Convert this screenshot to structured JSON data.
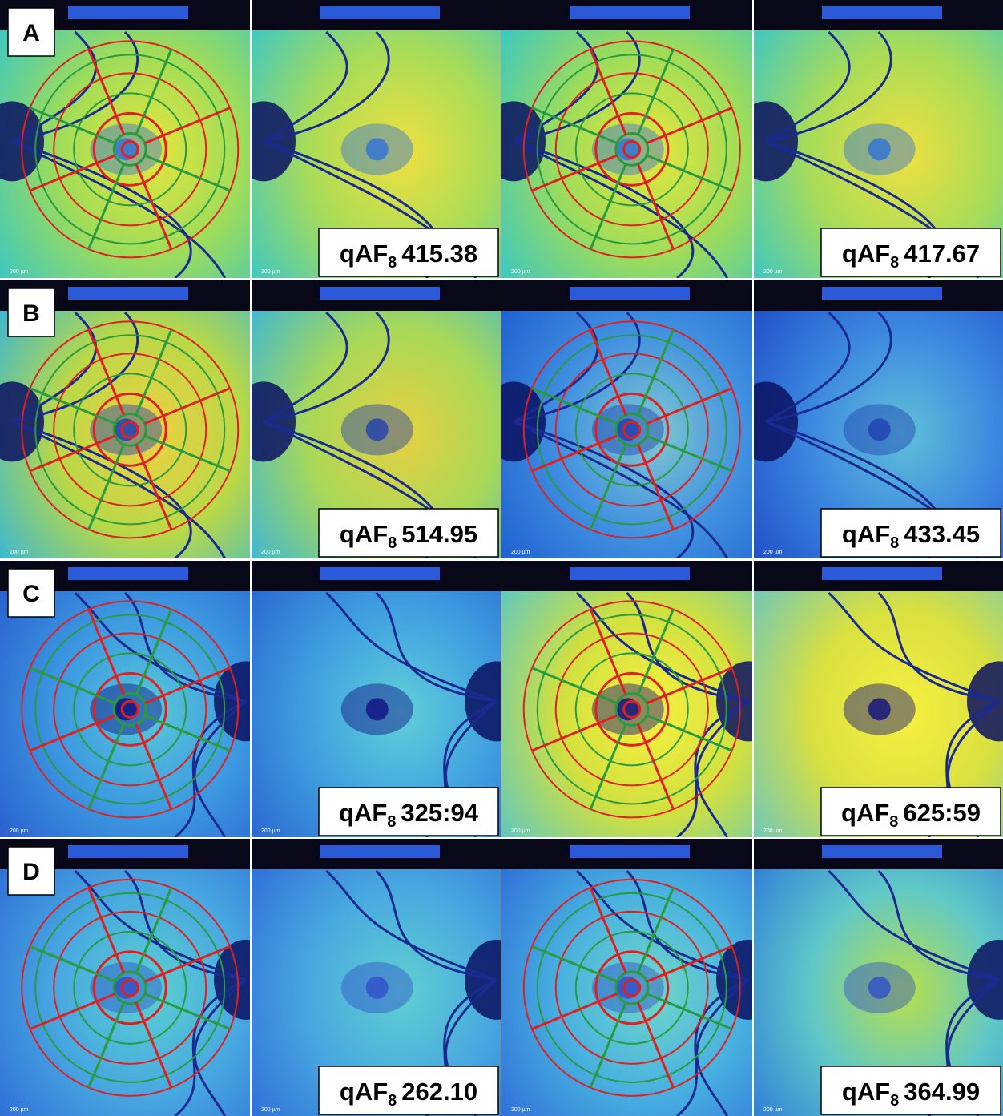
{
  "panel_labels": [
    "A",
    "B",
    "C",
    "D"
  ],
  "qaf_label": "qAF",
  "qaf_subscript": "8",
  "scale_bar_label": "200 µm",
  "rows": [
    {
      "values": [
        "415.38",
        "417.67"
      ]
    },
    {
      "values": [
        "514.95",
        "433.45"
      ]
    },
    {
      "values": [
        "325:94",
        "625:59"
      ]
    },
    {
      "values": [
        "262.10",
        "364.99"
      ]
    }
  ]
}
